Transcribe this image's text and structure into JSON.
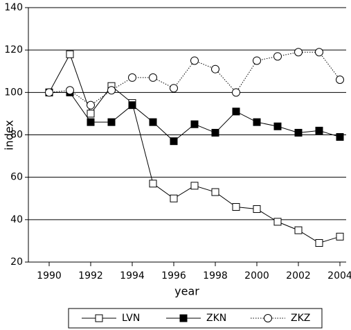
{
  "chart_data": {
    "type": "line",
    "x_label": "year",
    "y_label": "index",
    "x": [
      1990,
      1991,
      1992,
      1993,
      1994,
      1995,
      1996,
      1997,
      1998,
      1999,
      2000,
      2001,
      2002,
      2003,
      2004
    ],
    "series": [
      {
        "name": "LVN",
        "color": "#000000",
        "marker": "square-open",
        "dash": "solid",
        "values": [
          100,
          118,
          90,
          103,
          95,
          57,
          50,
          56,
          53,
          46,
          45,
          39,
          35,
          29,
          32
        ]
      },
      {
        "name": "ZKN",
        "color": "#000000",
        "marker": "square-filled",
        "dash": "solid",
        "values": [
          100,
          100,
          86,
          86,
          94,
          86,
          77,
          85,
          81,
          91,
          86,
          84,
          81,
          82,
          79
        ]
      },
      {
        "name": "ZKZ",
        "color": "#000000",
        "marker": "circle-open",
        "dash": "dotted",
        "values": [
          100,
          101,
          94,
          101,
          107,
          107,
          102,
          115,
          111,
          100,
          115,
          117,
          119,
          119,
          106
        ]
      }
    ],
    "xlim": [
      1989,
      2004.3
    ],
    "xticks": [
      1990,
      1992,
      1994,
      1996,
      1998,
      2000,
      2002,
      2004
    ],
    "ylim": [
      20,
      140
    ],
    "yticks": [
      20,
      40,
      60,
      80,
      100,
      120,
      140
    ],
    "grid": true,
    "legend": "bottom"
  }
}
